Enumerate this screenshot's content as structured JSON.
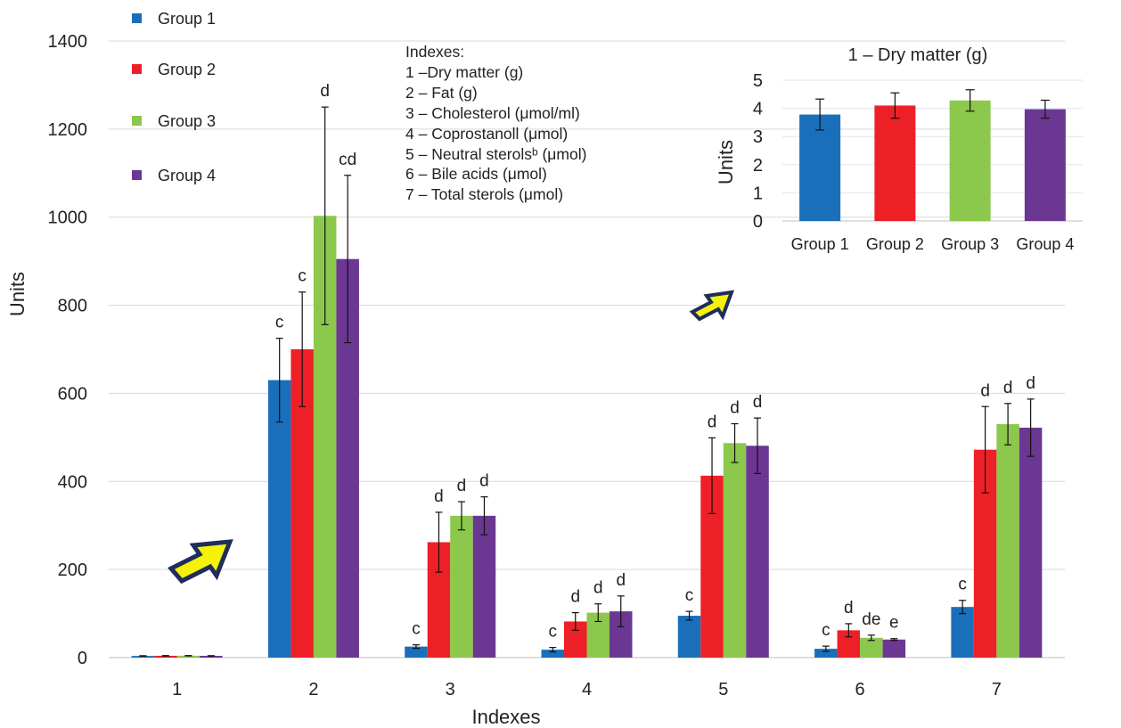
{
  "legend": {
    "items": [
      {
        "label": "Group 1",
        "color": "#1a6fbb"
      },
      {
        "label": "Group 2",
        "color": "#ee2027"
      },
      {
        "label": "Group 3",
        "color": "#8cc84b"
      },
      {
        "label": "Group 4",
        "color": "#6b3793"
      }
    ]
  },
  "index_list": {
    "heading": "Indexes:",
    "entries": [
      "1 –Dry matter (g)",
      "2 – Fat (g)",
      "3 – Cholesterol (μmol/ml)",
      "4 – Coprostanoll (μmol)",
      "5 – Neutral sterolsᵇ (μmol)",
      "6 – Bile acids (μmol)",
      "7 – Total sterols (μmol)"
    ]
  },
  "arrows": [
    {
      "name": "lower-left",
      "color": "#f5f20a",
      "outline": "#1f2d5a"
    },
    {
      "name": "upper-middle",
      "color": "#f5f20a",
      "outline": "#1f2d5a"
    }
  ],
  "chart_data": [
    {
      "type": "bar",
      "title": "",
      "xlabel": "Indexes",
      "ylabel": "Units",
      "ylim": [
        0,
        1400
      ],
      "yticks": [
        0,
        200,
        400,
        600,
        800,
        1000,
        1200,
        1400
      ],
      "grid": true,
      "categories": [
        "1",
        "2",
        "3",
        "4",
        "5",
        "6",
        "7"
      ],
      "series": [
        {
          "name": "Group 1",
          "color": "#1a6fbb",
          "values": [
            3.8,
            630,
            25,
            18,
            95,
            20,
            115
          ],
          "errors": [
            0.5,
            95,
            4,
            5,
            10,
            6,
            15
          ],
          "letters": [
            "",
            "c",
            "c",
            "c",
            "c",
            "c",
            "c"
          ]
        },
        {
          "name": "Group 2",
          "color": "#ee2027",
          "values": [
            4.1,
            700,
            262,
            82,
            413,
            62,
            472
          ],
          "errors": [
            0.5,
            130,
            68,
            20,
            86,
            15,
            98
          ],
          "letters": [
            "",
            "c",
            "d",
            "d",
            "d",
            "d",
            "d"
          ]
        },
        {
          "name": "Group 3",
          "color": "#8cc84b",
          "values": [
            4.3,
            1003,
            322,
            102,
            487,
            45,
            530
          ],
          "errors": [
            0.4,
            247,
            32,
            20,
            44,
            6,
            47
          ],
          "letters": [
            "",
            "d",
            "d",
            "d",
            "d",
            "de",
            "d"
          ]
        },
        {
          "name": "Group 4",
          "color": "#6b3793",
          "values": [
            4.0,
            905,
            322,
            105,
            481,
            41,
            522
          ],
          "errors": [
            0.4,
            190,
            43,
            35,
            63,
            2,
            65
          ],
          "letters": [
            "",
            "cd",
            "d",
            "d",
            "d",
            "e",
            "d"
          ]
        }
      ]
    },
    {
      "type": "bar",
      "title": "1 – Dry matter (g)",
      "xlabel": "",
      "ylabel": "Units",
      "ylim": [
        0,
        5
      ],
      "yticks": [
        0,
        1,
        2,
        3,
        4,
        5
      ],
      "grid": true,
      "categories": [
        "Group 1",
        "Group 2",
        "Group 3",
        "Group 4"
      ],
      "values": [
        3.78,
        4.1,
        4.28,
        3.97
      ],
      "errors": [
        0.55,
        0.45,
        0.38,
        0.32
      ],
      "colors": [
        "#1a6fbb",
        "#ee2027",
        "#8cc84b",
        "#6b3793"
      ]
    }
  ]
}
